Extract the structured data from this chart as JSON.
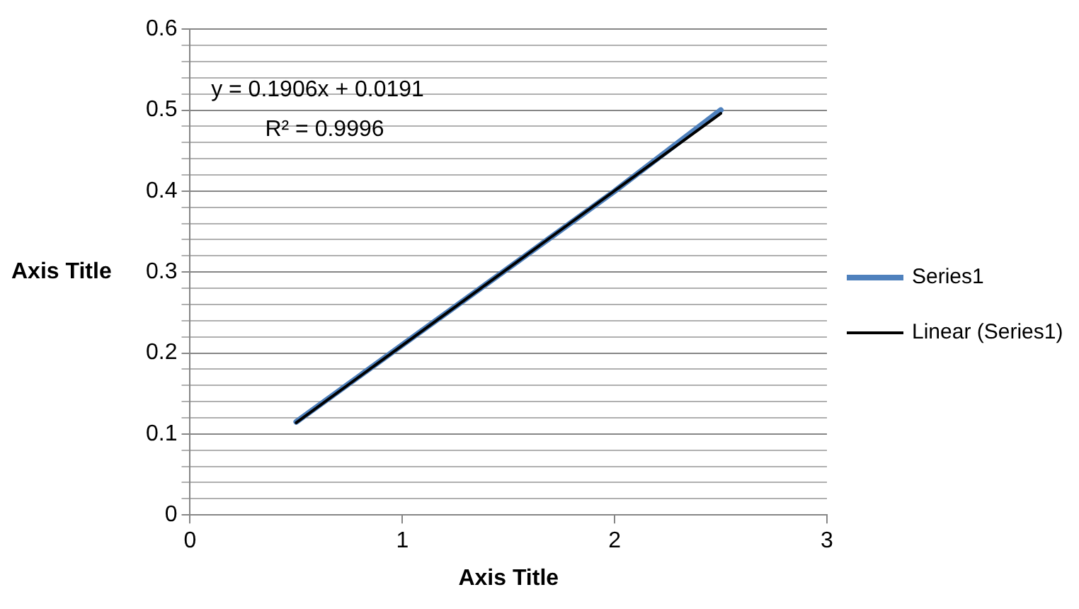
{
  "chart_data": {
    "type": "line",
    "xlabel": "Axis Title",
    "ylabel": "Axis Title",
    "annotations": [
      "y = 0.1906x + 0.0191",
      "R² = 0.9996"
    ],
    "series": [
      {
        "name": "Series1",
        "color": "#4f81bd",
        "x": [
          0.5,
          1,
          1.5,
          2,
          2.5
        ],
        "values": [
          0.115,
          0.21,
          0.305,
          0.4,
          0.5
        ]
      },
      {
        "name": "Linear (Series1)",
        "color": "#000000",
        "x": [
          0.5,
          2.5
        ],
        "values": [
          0.114,
          0.496
        ]
      }
    ],
    "xlim": [
      0,
      3
    ],
    "xticks": [
      0,
      1,
      2,
      3
    ],
    "ylim": [
      0,
      0.6
    ],
    "yticks": [
      0,
      {
        "value": 0.02,
        "label": null
      },
      {
        "value": 0.04,
        "label": null
      },
      {
        "value": 0.06,
        "label": null
      },
      {
        "value": 0.08,
        "label": null
      },
      0.1,
      {
        "value": 0.12,
        "label": null
      },
      {
        "value": 0.14,
        "label": null
      },
      {
        "value": 0.16,
        "label": null
      },
      {
        "value": 0.18,
        "label": null
      },
      0.2,
      {
        "value": 0.22,
        "label": null
      },
      {
        "value": 0.24,
        "label": null
      },
      {
        "value": 0.26,
        "label": null
      },
      {
        "value": 0.28,
        "label": null
      },
      0.3,
      {
        "value": 0.32,
        "label": null
      },
      {
        "value": 0.34,
        "label": null
      },
      {
        "value": 0.36,
        "label": null
      },
      {
        "value": 0.38,
        "label": null
      },
      0.4,
      {
        "value": 0.42,
        "label": null
      },
      {
        "value": 0.44,
        "label": null
      },
      {
        "value": 0.46,
        "label": null
      },
      {
        "value": 0.48,
        "label": null
      },
      0.5,
      {
        "value": 0.52,
        "label": null
      },
      {
        "value": 0.54,
        "label": null
      },
      {
        "value": 0.56,
        "label": null
      },
      {
        "value": 0.58,
        "label": null
      },
      0.6
    ],
    "grid": "y",
    "legend": "right",
    "marker": "none",
    "line_style": "solid"
  }
}
